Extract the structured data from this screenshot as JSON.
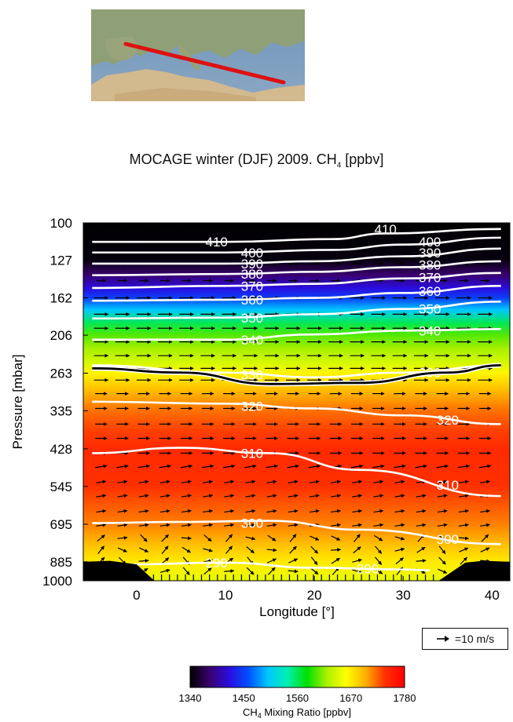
{
  "chart_data": {
    "type": "heatmap",
    "title": {
      "main": "MOCAGE winter (DJF) 2009. CH",
      "sub": "4",
      "unit": " [ppbv]"
    },
    "xlabel": "Longitude [°]",
    "ylabel": "Pressure [mbar]",
    "xlim": [
      -6,
      42
    ],
    "x_ticks": [
      0,
      10,
      20,
      30,
      40
    ],
    "y_ticks": [
      100,
      127,
      162,
      206,
      263,
      335,
      428,
      545,
      695,
      885,
      1000
    ],
    "y_scale": "log",
    "colorbar": {
      "label_main": "CH",
      "label_sub": "4",
      "label_rest": " Mixing Ratio [ppbv]",
      "ticks": [
        1340,
        1450,
        1560,
        1670,
        1780
      ],
      "range": [
        1340,
        1780
      ]
    },
    "wind_key_label": "=10 m/s",
    "potential_temperature_contours": [
      {
        "level": 410,
        "color": "white",
        "points": [
          [
            -5,
            113
          ],
          [
            10,
            113
          ],
          [
            22,
            111
          ],
          [
            28,
            107
          ],
          [
            41,
            104
          ]
        ],
        "labels": [
          [
            9,
            113
          ],
          [
            28,
            104
          ]
        ]
      },
      {
        "level": 400,
        "color": "white",
        "points": [
          [
            -5,
            121
          ],
          [
            10,
            121
          ],
          [
            22,
            119
          ],
          [
            30,
            115
          ],
          [
            41,
            110
          ]
        ],
        "labels": [
          [
            13,
            121
          ],
          [
            33,
            113
          ]
        ]
      },
      {
        "level": 390,
        "color": "white",
        "points": [
          [
            -5,
            130
          ],
          [
            10,
            130
          ],
          [
            20,
            128
          ],
          [
            30,
            124
          ],
          [
            41,
            118
          ]
        ],
        "labels": [
          [
            13,
            130
          ],
          [
            33,
            121
          ]
        ]
      },
      {
        "level": 380,
        "color": "white",
        "points": [
          [
            -5,
            140
          ],
          [
            10,
            139
          ],
          [
            20,
            137
          ],
          [
            30,
            133
          ],
          [
            41,
            128
          ]
        ],
        "labels": [
          [
            13,
            139
          ],
          [
            33,
            131
          ]
        ]
      },
      {
        "level": 370,
        "color": "white",
        "points": [
          [
            -5,
            152
          ],
          [
            10,
            150
          ],
          [
            20,
            148
          ],
          [
            30,
            143
          ],
          [
            41,
            138
          ]
        ],
        "labels": [
          [
            13,
            150
          ],
          [
            33,
            142
          ]
        ]
      },
      {
        "level": 360,
        "color": "white",
        "points": [
          [
            -5,
            165
          ],
          [
            10,
            164
          ],
          [
            20,
            162
          ],
          [
            30,
            157
          ],
          [
            41,
            150
          ]
        ],
        "labels": [
          [
            13,
            164
          ],
          [
            33,
            155
          ]
        ]
      },
      {
        "level": 350,
        "color": "white",
        "points": [
          [
            -5,
            185
          ],
          [
            10,
            184
          ],
          [
            20,
            180
          ],
          [
            30,
            174
          ],
          [
            41,
            166
          ]
        ],
        "labels": [
          [
            13,
            184
          ],
          [
            33,
            174
          ]
        ]
      },
      {
        "level": 340,
        "color": "white",
        "points": [
          [
            -5,
            212
          ],
          [
            10,
            212
          ],
          [
            20,
            205
          ],
          [
            30,
            200
          ],
          [
            41,
            198
          ]
        ],
        "labels": [
          [
            13,
            212
          ],
          [
            33,
            200
          ]
        ]
      },
      {
        "level": 330,
        "color": "white",
        "points": [
          [
            -5,
            250
          ],
          [
            10,
            262
          ],
          [
            20,
            270
          ],
          [
            30,
            262
          ],
          [
            41,
            250
          ]
        ],
        "labels": [
          [
            13,
            266
          ],
          [
            33,
            262
          ]
        ]
      },
      {
        "level": 320,
        "color": "white",
        "points": [
          [
            -5,
            316
          ],
          [
            10,
            320
          ],
          [
            20,
            330
          ],
          [
            30,
            345
          ],
          [
            41,
            365
          ]
        ],
        "labels": [
          [
            13,
            325
          ],
          [
            35,
            355
          ]
        ]
      },
      {
        "level": 310,
        "color": "white",
        "points": [
          [
            -5,
            440
          ],
          [
            5,
            425
          ],
          [
            15,
            440
          ],
          [
            25,
            490
          ],
          [
            41,
            580
          ]
        ],
        "labels": [
          [
            13,
            440
          ],
          [
            35,
            540
          ]
        ]
      },
      {
        "level": 300,
        "color": "white",
        "points": [
          [
            -5,
            690
          ],
          [
            5,
            685
          ],
          [
            15,
            680
          ],
          [
            25,
            720
          ],
          [
            41,
            790
          ]
        ],
        "labels": [
          [
            13,
            690
          ],
          [
            35,
            765
          ]
        ]
      },
      {
        "level": 290,
        "color": "white",
        "points": [
          [
            -1,
            900
          ],
          [
            10,
            890
          ],
          [
            20,
            920
          ],
          [
            30,
            930
          ],
          [
            33,
            935
          ]
        ],
        "labels": [
          [
            9,
            890
          ],
          [
            26,
            925
          ]
        ]
      }
    ],
    "tropopause": {
      "color": "black",
      "points": [
        [
          -5,
          255
        ],
        [
          5,
          262
        ],
        [
          15,
          282
        ],
        [
          25,
          280
        ],
        [
          35,
          262
        ],
        [
          41,
          250
        ]
      ]
    },
    "terrain": [
      [
        -6,
        885
      ],
      [
        -3,
        880
      ],
      [
        0,
        900
      ],
      [
        2,
        1000
      ],
      [
        34,
        1000
      ],
      [
        37,
        890
      ],
      [
        39,
        880
      ],
      [
        42,
        885
      ]
    ],
    "ch4_profile_levels": [
      {
        "p": 100,
        "v": 1340
      },
      {
        "p": 127,
        "v": 1345
      },
      {
        "p": 140,
        "v": 1380
      },
      {
        "p": 152,
        "v": 1420
      },
      {
        "p": 162,
        "v": 1450
      },
      {
        "p": 175,
        "v": 1500
      },
      {
        "p": 190,
        "v": 1560
      },
      {
        "p": 206,
        "v": 1600
      },
      {
        "p": 225,
        "v": 1620
      },
      {
        "p": 245,
        "v": 1640
      },
      {
        "p": 263,
        "v": 1665
      },
      {
        "p": 300,
        "v": 1700
      },
      {
        "p": 335,
        "v": 1720
      },
      {
        "p": 380,
        "v": 1735
      },
      {
        "p": 428,
        "v": 1745
      },
      {
        "p": 545,
        "v": 1740
      },
      {
        "p": 695,
        "v": 1715
      },
      {
        "p": 800,
        "v": 1690
      },
      {
        "p": 885,
        "v": 1670
      },
      {
        "p": 1000,
        "v": 1650
      }
    ]
  },
  "colors": {
    "colormap": [
      "#000000",
      "#3a006e",
      "#2a0de0",
      "#0050ff",
      "#00c8ff",
      "#00f0b0",
      "#00e000",
      "#a8f000",
      "#ffff00",
      "#ffb000",
      "#ff3000",
      "#ff0000"
    ],
    "contour": "#ffffff",
    "tropopause": "#000000",
    "terrain": "#000000",
    "map_track": "#dd1111"
  }
}
